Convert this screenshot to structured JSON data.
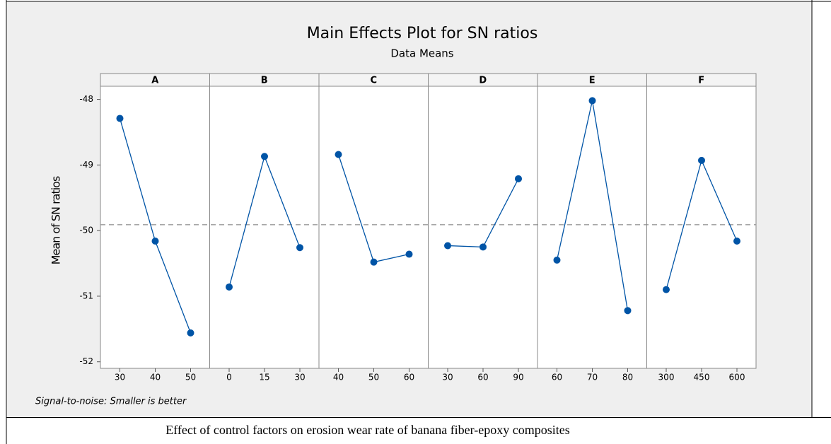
{
  "chart_data": {
    "type": "line",
    "title": "Main Effects Plot for SN ratios",
    "subtitle": "Data Means",
    "ylabel": "Mean of SN ratios",
    "footnote": "Signal-to-noise: Smaller is better",
    "color": "#0054a6",
    "ylim": [
      -52.1,
      -47.8
    ],
    "yticks": [
      -52,
      -51,
      -50,
      -49,
      -48
    ],
    "reference_line": -49.91,
    "panels": [
      {
        "name": "A",
        "categories": [
          "30",
          "40",
          "50"
        ],
        "values": [
          -48.29,
          -50.16,
          -51.56
        ]
      },
      {
        "name": "B",
        "categories": [
          "0",
          "15",
          "30"
        ],
        "values": [
          -50.86,
          -48.87,
          -50.26
        ]
      },
      {
        "name": "C",
        "categories": [
          "40",
          "50",
          "60"
        ],
        "values": [
          -48.84,
          -50.48,
          -50.36
        ]
      },
      {
        "name": "D",
        "categories": [
          "30",
          "60",
          "90"
        ],
        "values": [
          -50.23,
          -50.25,
          -49.21
        ]
      },
      {
        "name": "E",
        "categories": [
          "60",
          "70",
          "80"
        ],
        "values": [
          -50.45,
          -48.02,
          -51.22
        ]
      },
      {
        "name": "F",
        "categories": [
          "300",
          "450",
          "600"
        ],
        "values": [
          -50.9,
          -48.93,
          -50.16
        ]
      }
    ]
  },
  "caption": "Effect of control factors on erosion wear rate of banana fiber-epoxy composites"
}
